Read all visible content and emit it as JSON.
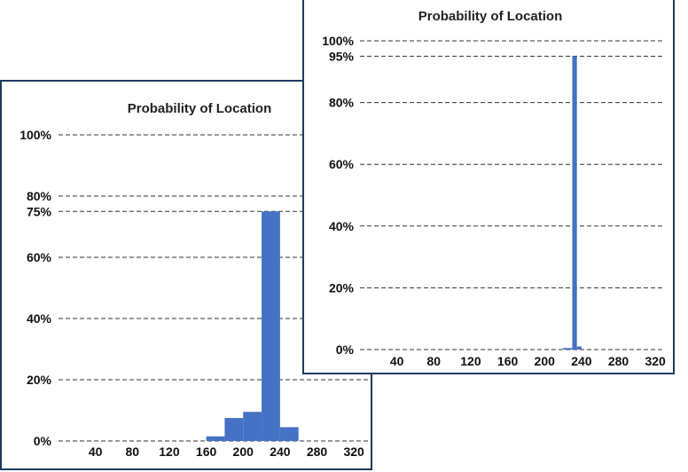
{
  "chart_data": [
    {
      "type": "bar",
      "title": "Probability of Location",
      "xlabel": "",
      "ylabel": "",
      "x_tick_labels": [
        "40",
        "80",
        "120",
        "160",
        "200",
        "240",
        "280",
        "320"
      ],
      "x_ticks": [
        40,
        80,
        120,
        160,
        200,
        240,
        280,
        320
      ],
      "xlim": [
        0,
        340
      ],
      "y_tick_labels": [
        "0%",
        "20%",
        "40%",
        "60%",
        "75%",
        "80%",
        "100%"
      ],
      "y_ticks": [
        0,
        20,
        40,
        60,
        75,
        80,
        100
      ],
      "ylim": [
        0,
        100
      ],
      "grid": true,
      "bin_width": 20,
      "bins": [
        {
          "start": 160,
          "value": 1.5
        },
        {
          "start": 180,
          "value": 7.5
        },
        {
          "start": 200,
          "value": 9.5
        },
        {
          "start": 220,
          "value": 75
        },
        {
          "start": 240,
          "value": 4.5
        }
      ],
      "bar_color": "#4472c4"
    },
    {
      "type": "bar",
      "title": "Probability of Location",
      "xlabel": "",
      "ylabel": "",
      "x_tick_labels": [
        "40",
        "80",
        "120",
        "160",
        "200",
        "240",
        "280",
        "320"
      ],
      "x_ticks": [
        40,
        80,
        120,
        160,
        200,
        240,
        280,
        320
      ],
      "xlim": [
        0,
        340
      ],
      "y_tick_labels": [
        "0%",
        "20%",
        "40%",
        "60%",
        "80%",
        "95%",
        "100%"
      ],
      "y_ticks": [
        0,
        20,
        40,
        60,
        80,
        95,
        100
      ],
      "ylim": [
        0,
        100
      ],
      "grid": true,
      "bin_width": 5,
      "bins": [
        {
          "start": 220,
          "value": 0.5
        },
        {
          "start": 225,
          "value": 0.5
        },
        {
          "start": 230,
          "value": 95
        },
        {
          "start": 235,
          "value": 1
        }
      ],
      "bar_color": "#4472c4"
    }
  ]
}
